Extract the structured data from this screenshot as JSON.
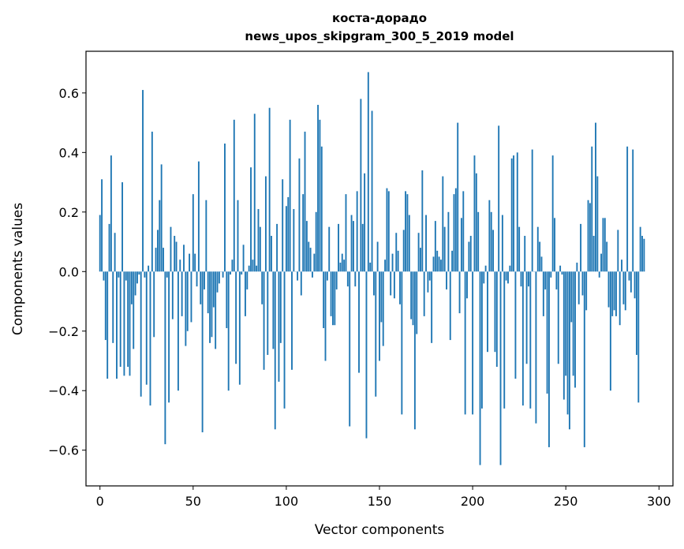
{
  "chart_data": {
    "type": "bar",
    "title_line1": "коста-дорадо",
    "title_line2": "news_upos_skipgram_300_5_2019 model",
    "xlabel": "Vector components",
    "ylabel": "Components values",
    "xlim": [
      -7.5,
      307.5
    ],
    "ylim": [
      -0.72,
      0.74
    ],
    "xticks": [
      {
        "value": 0,
        "label": "0"
      },
      {
        "value": 50,
        "label": "50"
      },
      {
        "value": 100,
        "label": "100"
      },
      {
        "value": 150,
        "label": "150"
      },
      {
        "value": 200,
        "label": "200"
      },
      {
        "value": 250,
        "label": "250"
      },
      {
        "value": 300,
        "label": "300"
      }
    ],
    "yticks": [
      {
        "value": -0.6,
        "label": "−0.6"
      },
      {
        "value": -0.4,
        "label": "−0.4"
      },
      {
        "value": -0.2,
        "label": "−0.2"
      },
      {
        "value": 0.0,
        "label": "0.0"
      },
      {
        "value": 0.2,
        "label": "0.2"
      },
      {
        "value": 0.4,
        "label": "0.4"
      },
      {
        "value": 0.6,
        "label": "0.6"
      }
    ],
    "bar_color": "#1f77b4",
    "values": [
      0.19,
      0.31,
      -0.03,
      -0.23,
      -0.36,
      0.16,
      0.39,
      -0.24,
      0.13,
      -0.36,
      -0.02,
      -0.32,
      0.3,
      -0.35,
      -0.03,
      -0.32,
      -0.35,
      -0.11,
      -0.26,
      -0.08,
      -0.04,
      -0.01,
      -0.42,
      0.61,
      -0.02,
      -0.38,
      0.02,
      -0.45,
      0.47,
      -0.22,
      0.08,
      0.14,
      0.24,
      0.36,
      0.08,
      -0.58,
      -0.02,
      -0.44,
      0.15,
      -0.16,
      0.12,
      0.1,
      -0.4,
      0.04,
      -0.15,
      0.09,
      -0.25,
      -0.2,
      0.06,
      -0.17,
      0.26,
      0.06,
      -0.05,
      0.37,
      -0.11,
      -0.54,
      -0.06,
      0.24,
      -0.14,
      -0.24,
      -0.22,
      -0.12,
      -0.26,
      -0.07,
      -0.04,
      0.0,
      -0.02,
      0.43,
      -0.19,
      -0.4,
      -0.01,
      0.04,
      0.51,
      -0.31,
      0.24,
      -0.38,
      -0.01,
      0.09,
      -0.15,
      -0.06,
      0.02,
      0.35,
      0.04,
      0.53,
      0.02,
      0.21,
      0.15,
      -0.11,
      -0.33,
      0.32,
      -0.28,
      0.55,
      0.12,
      -0.26,
      -0.53,
      0.16,
      -0.37,
      -0.24,
      0.31,
      -0.46,
      0.22,
      0.25,
      0.51,
      -0.33,
      0.21,
      0.0,
      -0.03,
      0.38,
      -0.08,
      0.26,
      0.47,
      0.17,
      0.1,
      0.08,
      -0.02,
      0.06,
      0.2,
      0.56,
      0.51,
      0.42,
      -0.19,
      -0.3,
      -0.03,
      0.15,
      -0.15,
      -0.18,
      -0.18,
      -0.06,
      0.16,
      0.03,
      0.06,
      0.04,
      0.26,
      -0.05,
      -0.52,
      0.19,
      0.17,
      -0.05,
      0.27,
      -0.34,
      0.58,
      0.16,
      0.33,
      -0.56,
      0.67,
      0.03,
      0.54,
      -0.08,
      -0.42,
      0.1,
      -0.3,
      -0.17,
      -0.25,
      0.04,
      0.28,
      0.27,
      -0.08,
      0.06,
      -0.09,
      0.13,
      0.07,
      -0.11,
      -0.48,
      0.14,
      0.27,
      0.26,
      0.19,
      -0.16,
      -0.18,
      -0.53,
      -0.21,
      0.13,
      0.08,
      0.34,
      -0.15,
      0.19,
      -0.07,
      -0.03,
      -0.24,
      0.05,
      0.17,
      0.07,
      0.05,
      0.04,
      0.32,
      0.15,
      -0.06,
      0.2,
      -0.23,
      0.07,
      0.26,
      0.28,
      0.5,
      -0.14,
      0.18,
      0.27,
      -0.48,
      -0.09,
      0.1,
      0.12,
      -0.48,
      0.39,
      0.33,
      0.2,
      -0.65,
      -0.46,
      -0.04,
      0.02,
      -0.27,
      0.24,
      0.2,
      0.14,
      -0.27,
      -0.32,
      0.49,
      -0.65,
      0.19,
      -0.46,
      -0.03,
      -0.04,
      0.02,
      0.38,
      0.39,
      -0.36,
      0.4,
      0.15,
      -0.05,
      -0.45,
      0.12,
      -0.31,
      -0.05,
      -0.46,
      0.41,
      0.0,
      -0.51,
      0.15,
      0.1,
      0.05,
      -0.15,
      -0.06,
      -0.41,
      -0.59,
      -0.02,
      0.39,
      0.18,
      -0.06,
      -0.31,
      0.02,
      -0.01,
      -0.43,
      -0.35,
      -0.48,
      -0.53,
      -0.17,
      -0.35,
      -0.39,
      0.03,
      -0.11,
      0.16,
      -0.08,
      -0.59,
      -0.13,
      0.24,
      0.23,
      0.42,
      0.12,
      0.5,
      0.32,
      -0.02,
      0.06,
      0.18,
      0.18,
      0.1,
      -0.12,
      -0.4,
      -0.15,
      -0.13,
      -0.15,
      0.14,
      -0.18,
      0.04,
      -0.11,
      -0.13,
      0.42,
      -0.03,
      -0.07,
      0.41,
      -0.09,
      -0.28,
      -0.44,
      0.15,
      0.12,
      0.11
    ]
  }
}
